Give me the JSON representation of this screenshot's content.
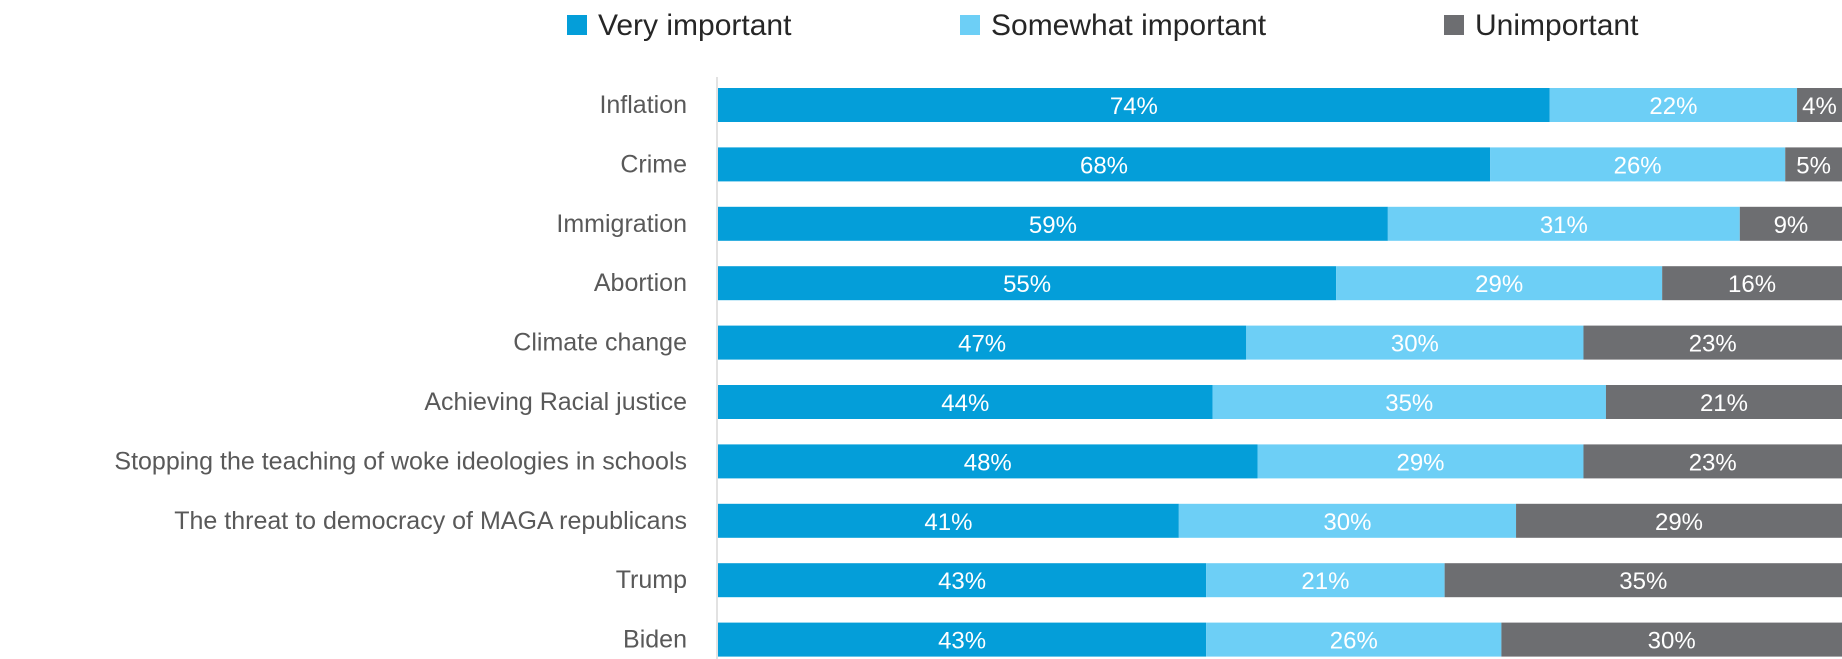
{
  "chart_data": {
    "type": "bar",
    "orientation": "horizontal",
    "stacked": true,
    "percent_stacked": true,
    "title": "",
    "xlabel": "",
    "ylabel": "",
    "xlim": [
      0,
      100
    ],
    "grid": false,
    "legend_position": "top",
    "categories": [
      "Inflation",
      "Crime",
      "Immigration",
      "Abortion",
      "Climate change",
      "Achieving Racial justice",
      "Stopping the teaching of woke ideologies in schools",
      "The threat to democracy of MAGA republicans",
      "Trump",
      "Biden"
    ],
    "series": [
      {
        "name": "Very important",
        "color": "#049ED9",
        "values": [
          74,
          68,
          59,
          55,
          47,
          44,
          48,
          41,
          43,
          43
        ]
      },
      {
        "name": "Somewhat important",
        "color": "#6DCFF6",
        "values": [
          22,
          26,
          31,
          29,
          30,
          35,
          29,
          30,
          21,
          26
        ]
      },
      {
        "name": "Unimportant",
        "color": "#6D6E71",
        "values": [
          4,
          5,
          9,
          16,
          23,
          21,
          23,
          29,
          35,
          30
        ]
      }
    ],
    "value_suffix": "%"
  }
}
